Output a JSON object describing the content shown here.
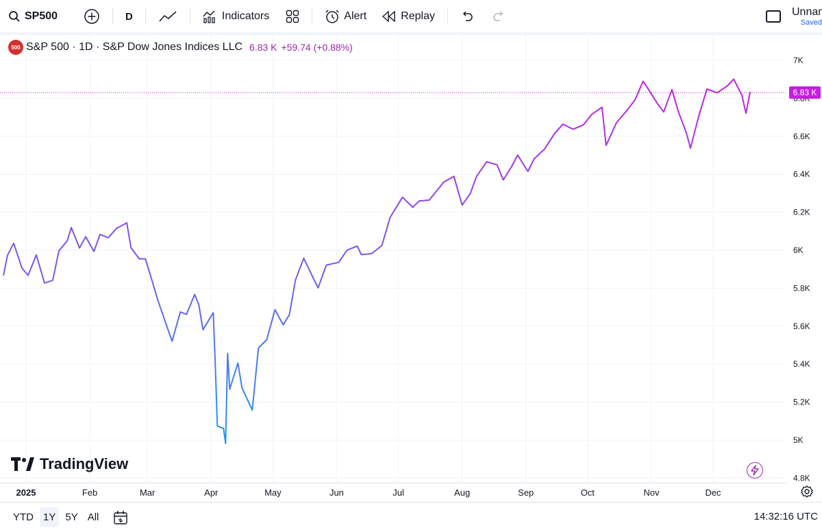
{
  "toolbar": {
    "symbol": "SP500",
    "interval": "D",
    "indicators_label": "Indicators",
    "alert_label": "Alert",
    "replay_label": "Replay",
    "layout_name": "Unnamed",
    "save_status": "Saved"
  },
  "legend": {
    "badge": "500",
    "title": "S&P 500 · 1D · S&P Dow Jones Indices LLC",
    "value": "6.83 K",
    "change": "+59.74 (+0.88%)"
  },
  "last_price_label": "6.83 K",
  "watermark": "TradingView",
  "colors": {
    "line_start": "#2196f3",
    "line_end": "#c51ee0",
    "accent": "#9c27b0"
  },
  "chart_data": {
    "type": "line",
    "title": "S&P 500 · 1D · S&P Dow Jones Indices LLC",
    "x_ticks": [
      {
        "label": "2025",
        "date": "2025-01-01",
        "year": true
      },
      {
        "label": "Feb",
        "date": "2025-02-01"
      },
      {
        "label": "Mar",
        "date": "2025-03-01"
      },
      {
        "label": "Apr",
        "date": "2025-04-01"
      },
      {
        "label": "May",
        "date": "2025-05-01"
      },
      {
        "label": "Jun",
        "date": "2025-06-01"
      },
      {
        "label": "Jul",
        "date": "2025-07-01"
      },
      {
        "label": "Aug",
        "date": "2025-08-01"
      },
      {
        "label": "Sep",
        "date": "2025-09-01"
      },
      {
        "label": "Oct",
        "date": "2025-10-01"
      },
      {
        "label": "Nov",
        "date": "2025-11-01"
      },
      {
        "label": "Dec",
        "date": "2025-12-01"
      }
    ],
    "y_ticks": [
      {
        "label": "4.8K",
        "value": 4800
      },
      {
        "label": "5K",
        "value": 5000
      },
      {
        "label": "5.2K",
        "value": 5200
      },
      {
        "label": "5.4K",
        "value": 5400
      },
      {
        "label": "5.6K",
        "value": 5600
      },
      {
        "label": "5.8K",
        "value": 5800
      },
      {
        "label": "6K",
        "value": 6000
      },
      {
        "label": "6.2K",
        "value": 6200
      },
      {
        "label": "6.4K",
        "value": 6400
      },
      {
        "label": "6.6K",
        "value": 6600
      },
      {
        "label": "6.8K",
        "value": 6800
      },
      {
        "label": "7K",
        "value": 7000
      }
    ],
    "last_value": 6830,
    "grid": true,
    "series": [
      {
        "points": [
          [
            "2024-12-19",
            5867
          ],
          [
            "2024-12-23",
            5974
          ],
          [
            "2024-12-26",
            6037
          ],
          [
            "2024-12-30",
            5906
          ],
          [
            "2025-01-02",
            5868
          ],
          [
            "2025-01-06",
            5975
          ],
          [
            "2025-01-10",
            5827
          ],
          [
            "2025-01-14",
            5842
          ],
          [
            "2025-01-17",
            5997
          ],
          [
            "2025-01-21",
            6049
          ],
          [
            "2025-01-23",
            6119
          ],
          [
            "2025-01-27",
            6012
          ],
          [
            "2025-01-30",
            6071
          ],
          [
            "2025-02-03",
            5994
          ],
          [
            "2025-02-06",
            6083
          ],
          [
            "2025-02-10",
            6066
          ],
          [
            "2025-02-14",
            6115
          ],
          [
            "2025-02-19",
            6144
          ],
          [
            "2025-02-21",
            6013
          ],
          [
            "2025-02-25",
            5955
          ],
          [
            "2025-02-28",
            5955
          ],
          [
            "2025-03-03",
            5849
          ],
          [
            "2025-03-06",
            5739
          ],
          [
            "2025-03-10",
            5614
          ],
          [
            "2025-03-13",
            5521
          ],
          [
            "2025-03-17",
            5675
          ],
          [
            "2025-03-20",
            5662
          ],
          [
            "2025-03-24",
            5767
          ],
          [
            "2025-03-26",
            5712
          ],
          [
            "2025-03-28",
            5581
          ],
          [
            "2025-04-02",
            5671
          ],
          [
            "2025-04-03",
            5396
          ],
          [
            "2025-04-04",
            5074
          ],
          [
            "2025-04-07",
            5062
          ],
          [
            "2025-04-08",
            4982
          ],
          [
            "2025-04-09",
            5457
          ],
          [
            "2025-04-10",
            5268
          ],
          [
            "2025-04-14",
            5406
          ],
          [
            "2025-04-16",
            5275
          ],
          [
            "2025-04-21",
            5158
          ],
          [
            "2025-04-24",
            5485
          ],
          [
            "2025-04-28",
            5529
          ],
          [
            "2025-05-02",
            5687
          ],
          [
            "2025-05-06",
            5607
          ],
          [
            "2025-05-09",
            5660
          ],
          [
            "2025-05-12",
            5844
          ],
          [
            "2025-05-16",
            5958
          ],
          [
            "2025-05-21",
            5845
          ],
          [
            "2025-05-23",
            5802
          ],
          [
            "2025-05-27",
            5922
          ],
          [
            "2025-06-02",
            5936
          ],
          [
            "2025-06-06",
            6000
          ],
          [
            "2025-06-11",
            6022
          ],
          [
            "2025-06-13",
            5977
          ],
          [
            "2025-06-18",
            5982
          ],
          [
            "2025-06-23",
            6025
          ],
          [
            "2025-06-27",
            6173
          ],
          [
            "2025-07-03",
            6279
          ],
          [
            "2025-07-08",
            6226
          ],
          [
            "2025-07-11",
            6259
          ],
          [
            "2025-07-16",
            6264
          ],
          [
            "2025-07-23",
            6358
          ],
          [
            "2025-07-28",
            6389
          ],
          [
            "2025-08-01",
            6238
          ],
          [
            "2025-08-05",
            6299
          ],
          [
            "2025-08-08",
            6389
          ],
          [
            "2025-08-13",
            6466
          ],
          [
            "2025-08-18",
            6449
          ],
          [
            "2025-08-21",
            6370
          ],
          [
            "2025-08-25",
            6439
          ],
          [
            "2025-08-28",
            6501
          ],
          [
            "2025-09-02",
            6415
          ],
          [
            "2025-09-05",
            6481
          ],
          [
            "2025-09-10",
            6532
          ],
          [
            "2025-09-15",
            6615
          ],
          [
            "2025-09-19",
            6664
          ],
          [
            "2025-09-24",
            6637
          ],
          [
            "2025-09-29",
            6661
          ],
          [
            "2025-10-03",
            6715
          ],
          [
            "2025-10-08",
            6753
          ],
          [
            "2025-10-10",
            6552
          ],
          [
            "2025-10-15",
            6671
          ],
          [
            "2025-10-20",
            6735
          ],
          [
            "2025-10-24",
            6791
          ],
          [
            "2025-10-28",
            6890
          ],
          [
            "2025-10-31",
            6840
          ],
          [
            "2025-11-04",
            6771
          ],
          [
            "2025-11-07",
            6728
          ],
          [
            "2025-11-11",
            6846
          ],
          [
            "2025-11-14",
            6734
          ],
          [
            "2025-11-18",
            6617
          ],
          [
            "2025-11-20",
            6538
          ],
          [
            "2025-11-24",
            6705
          ],
          [
            "2025-11-28",
            6849
          ],
          [
            "2025-12-03",
            6829
          ],
          [
            "2025-12-08",
            6866
          ],
          [
            "2025-12-11",
            6901
          ],
          [
            "2025-12-15",
            6817
          ],
          [
            "2025-12-17",
            6721
          ],
          [
            "2025-12-19",
            6834
          ]
        ]
      }
    ]
  },
  "ranges": [
    "YTD",
    "1Y",
    "5Y",
    "All"
  ],
  "active_range": "1Y",
  "clock": "14:32:16 UTC"
}
